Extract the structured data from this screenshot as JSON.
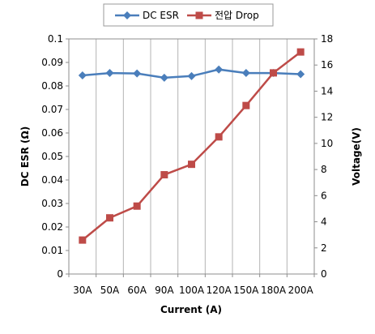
{
  "chart_data": {
    "type": "line",
    "categories": [
      "30A",
      "50A",
      "60A",
      "90A",
      "100A",
      "120A",
      "150A",
      "180A",
      "200A"
    ],
    "series": [
      {
        "name": "DC ESR",
        "axis": "left",
        "color": "#4a7ebb",
        "marker": "diamond",
        "values": [
          0.0845,
          0.0855,
          0.0853,
          0.0835,
          0.0842,
          0.087,
          0.0855,
          0.0855,
          0.085
        ]
      },
      {
        "name": "전압 Drop",
        "axis": "right",
        "color": "#be4b48",
        "marker": "square",
        "values": [
          2.6,
          4.3,
          5.2,
          7.6,
          8.4,
          10.5,
          12.9,
          15.4,
          17.0
        ]
      }
    ],
    "xlabel": "Current  (A)",
    "ylabel_left": "DC ESR  (Ω)",
    "ylabel_right": "Voltage(V)",
    "ylim_left": [
      0,
      0.1
    ],
    "ylim_right": [
      0,
      18
    ],
    "yticks_left": [
      "0",
      "0.01",
      "0.02",
      "0.03",
      "0.04",
      "0.05",
      "0.06",
      "0.07",
      "0.08",
      "0.09",
      "0.1"
    ],
    "yticks_right": [
      "0",
      "2",
      "4",
      "6",
      "8",
      "10",
      "12",
      "14",
      "16",
      "18"
    ],
    "grid": "vertical",
    "legend_position": "top"
  }
}
